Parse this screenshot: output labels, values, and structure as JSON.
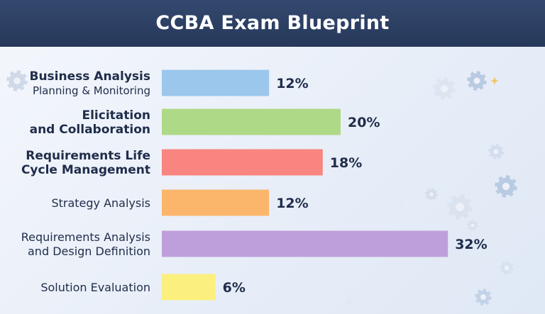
{
  "header": {
    "title": "CCBA Exam Blueprint"
  },
  "chart_data": {
    "type": "bar",
    "orientation": "horizontal",
    "title": "CCBA Exam Blueprint",
    "categories": [
      "Business Analysis Planning & Monitoring",
      "Elicitation and Collaboration",
      "Requirements Life Cycle Management",
      "Strategy Analysis",
      "Requirements Analysis and Design Definition",
      "Solution Evaluation"
    ],
    "label_lines": [
      [
        "Business Analysis",
        "Planning & Monitoring"
      ],
      [
        "Elicitation",
        "and Collaboration"
      ],
      [
        "Requirements Life",
        "Cycle Management"
      ],
      [
        "Strategy Analysis"
      ],
      [
        "Requirements Analysis",
        "and Design Definition"
      ],
      [
        "Solution Evaluation"
      ]
    ],
    "values": [
      12,
      20,
      18,
      12,
      32,
      6
    ],
    "value_labels": [
      "12%",
      "20%",
      "18%",
      "12%",
      "32%",
      "6%"
    ],
    "colors": [
      "#9cc7ec",
      "#aed987",
      "#f8857f",
      "#fcb66c",
      "#bf9fdb",
      "#fbf07e"
    ],
    "xlabel": "",
    "ylabel": "",
    "grid": false,
    "legend": "none"
  }
}
